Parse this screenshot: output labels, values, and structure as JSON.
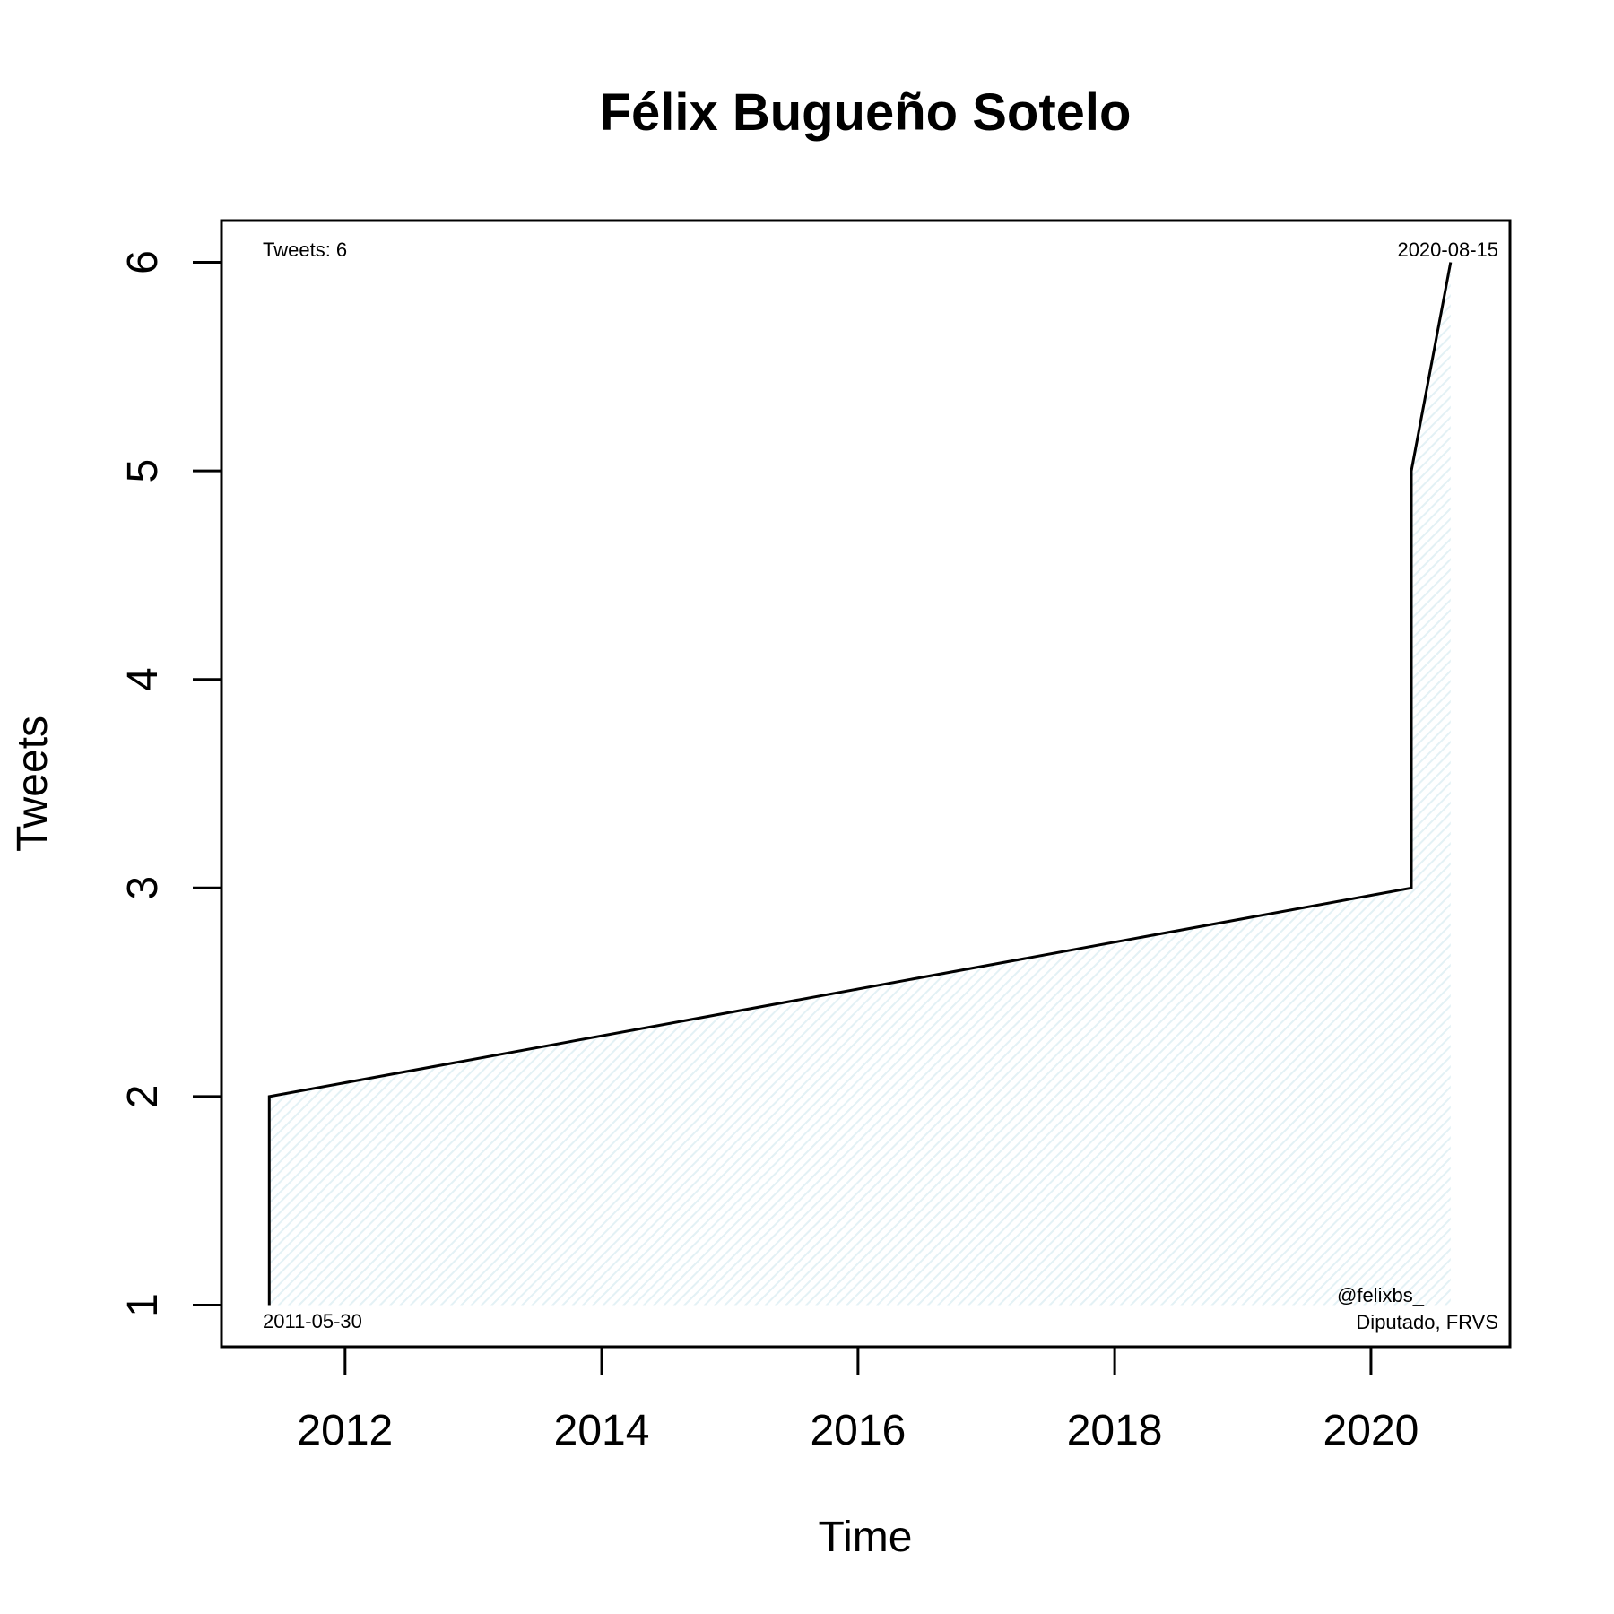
{
  "chart_data": {
    "type": "area",
    "title": "Félix Bugueño Sotelo",
    "xlabel": "Time",
    "ylabel": "Tweets",
    "x_type": "date",
    "xlim": [
      "2011-01-14",
      "2021-01-31"
    ],
    "ylim": [
      0.8,
      6.2
    ],
    "x_ticks": [
      {
        "value": "2012-01-01",
        "label": "2012"
      },
      {
        "value": "2014-01-01",
        "label": "2014"
      },
      {
        "value": "2016-01-01",
        "label": "2016"
      },
      {
        "value": "2018-01-01",
        "label": "2018"
      },
      {
        "value": "2020-01-01",
        "label": "2020"
      }
    ],
    "y_ticks": [
      1,
      2,
      3,
      4,
      5,
      6
    ],
    "grid": false,
    "series": [
      {
        "x": [
          "2011-05-30",
          "2011-05-30",
          "2020-04-25",
          "2020-04-25",
          "2020-08-15"
        ],
        "values": [
          1,
          2,
          3,
          5,
          6
        ]
      }
    ],
    "fill_color": "#e3f1f5",
    "line_color": "#000000",
    "annotations": {
      "count": "Tweets: 6",
      "last_date": "2020-08-15",
      "first_date": "2011-05-30",
      "handle": "@felixbs_",
      "role": "Diputado, FRVS"
    }
  }
}
